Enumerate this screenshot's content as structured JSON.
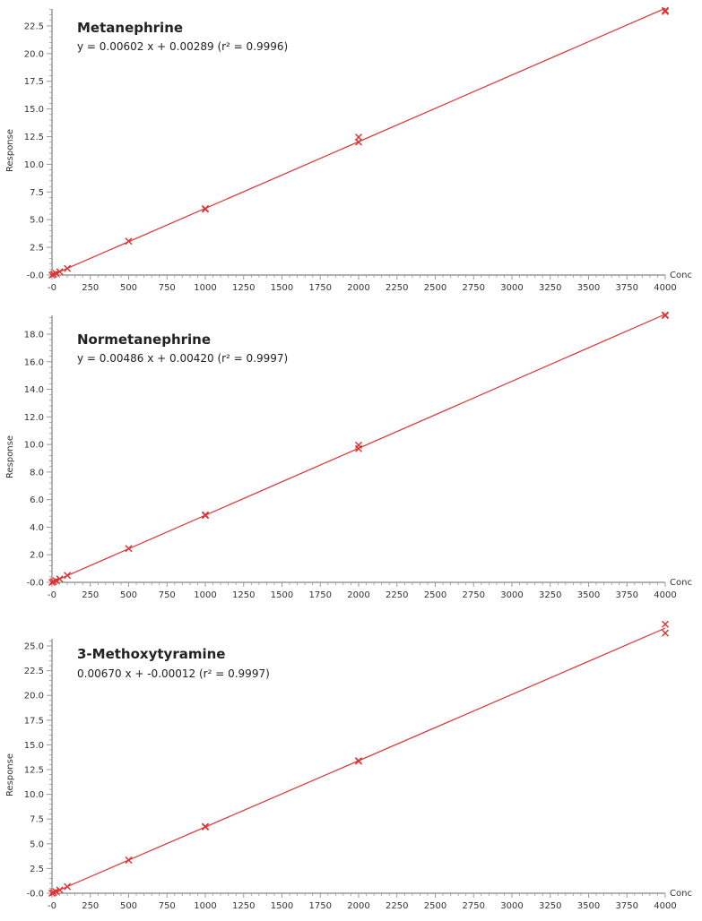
{
  "chart_data": [
    {
      "type": "scatter",
      "title": "Metanephrine",
      "subtitle": "y = 0.00602 x + 0.00289 (r² = 0.9996)",
      "xlabel": "Conc",
      "ylabel": "Response",
      "xlim": [
        0,
        4000
      ],
      "ylim": [
        0,
        24
      ],
      "xticks": [
        "-0",
        "250",
        "500",
        "750",
        "1000",
        "1250",
        "1500",
        "1750",
        "2000",
        "2250",
        "2500",
        "2750",
        "3000",
        "3250",
        "3500",
        "3750",
        "4000"
      ],
      "yticks": [
        "-0.0",
        "2.5",
        "5.0",
        "7.5",
        "10.0",
        "12.5",
        "15.0",
        "17.5",
        "20.0",
        "22.5"
      ],
      "ytick_values": [
        0,
        2.5,
        5,
        7.5,
        10,
        12.5,
        15,
        17.5,
        20,
        22.5
      ],
      "fit": {
        "slope": 0.00602,
        "intercept": 0.00289,
        "r2": 0.9996
      },
      "points": [
        [
          0,
          0.0
        ],
        [
          10,
          0.06
        ],
        [
          25,
          0.15
        ],
        [
          50,
          0.3
        ],
        [
          100,
          0.6
        ],
        [
          500,
          3.05
        ],
        [
          1000,
          5.95
        ],
        [
          1000,
          6.0
        ],
        [
          2000,
          12.0
        ],
        [
          2000,
          12.45
        ],
        [
          4000,
          23.9
        ],
        [
          4000,
          23.8
        ]
      ],
      "series_color": "#e03030"
    },
    {
      "type": "scatter",
      "title": "Normetanephrine",
      "subtitle": "y = 0.00486 x + 0.00420 (r² = 0.9997)",
      "xlabel": "Conc",
      "ylabel": "Response",
      "xlim": [
        0,
        4000
      ],
      "ylim": [
        0,
        19.6
      ],
      "xticks": [
        "-0",
        "250",
        "500",
        "750",
        "1000",
        "1250",
        "1500",
        "1750",
        "2000",
        "2250",
        "2500",
        "2750",
        "3000",
        "3250",
        "3500",
        "3750",
        "4000"
      ],
      "yticks": [
        "-0.0",
        "2.0",
        "4.0",
        "6.0",
        "8.0",
        "10.0",
        "12.0",
        "14.0",
        "16.0",
        "18.0"
      ],
      "ytick_values": [
        0,
        2,
        4,
        6,
        8,
        10,
        12,
        14,
        16,
        18
      ],
      "fit": {
        "slope": 0.00486,
        "intercept": 0.0042,
        "r2": 0.9997
      },
      "points": [
        [
          0,
          0.0
        ],
        [
          10,
          0.05
        ],
        [
          25,
          0.12
        ],
        [
          50,
          0.25
        ],
        [
          100,
          0.5
        ],
        [
          500,
          2.45
        ],
        [
          1000,
          4.85
        ],
        [
          1000,
          4.9
        ],
        [
          2000,
          9.7
        ],
        [
          2000,
          9.95
        ],
        [
          4000,
          19.4
        ],
        [
          4000,
          19.35
        ]
      ],
      "series_color": "#e03030"
    },
    {
      "type": "scatter",
      "title": "3-Methoxytyramine",
      "subtitle": "0.00670 x + -0.00012 (r² = 0.9997)",
      "xlabel": "Conc",
      "ylabel": "Response",
      "xlim": [
        0,
        4000
      ],
      "ylim": [
        0,
        28
      ],
      "xticks": [
        "-0",
        "250",
        "500",
        "750",
        "1000",
        "1250",
        "1500",
        "1750",
        "2000",
        "2250",
        "2500",
        "2750",
        "3000",
        "3250",
        "3500",
        "3750",
        "4000"
      ],
      "yticks": [
        "-0.0",
        "2.5",
        "5.0",
        "7.5",
        "10.0",
        "12.5",
        "15.0",
        "17.5",
        "20.0",
        "22.5",
        "25.0"
      ],
      "ytick_values": [
        0,
        2.5,
        5,
        7.5,
        10,
        12.5,
        15,
        17.5,
        20,
        22.5,
        25
      ],
      "fit": {
        "slope": 0.0067,
        "intercept": -0.00012,
        "r2": 0.9997
      },
      "points": [
        [
          0,
          0.0
        ],
        [
          10,
          0.07
        ],
        [
          25,
          0.17
        ],
        [
          50,
          0.33
        ],
        [
          100,
          0.67
        ],
        [
          500,
          3.35
        ],
        [
          1000,
          6.7
        ],
        [
          1000,
          6.75
        ],
        [
          2000,
          13.4
        ],
        [
          2000,
          13.35
        ],
        [
          4000,
          27.2
        ],
        [
          4000,
          26.3
        ]
      ],
      "series_color": "#e03030"
    }
  ]
}
